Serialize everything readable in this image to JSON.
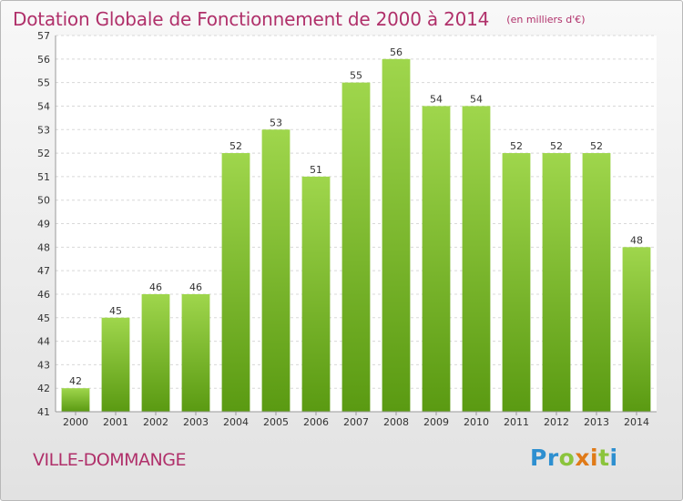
{
  "chart_data": {
    "type": "bar",
    "title": "Dotation Globale de Fonctionnement de 2000 à 2014",
    "unit": "(en milliers d'€)",
    "categories": [
      "2000",
      "2001",
      "2002",
      "2003",
      "2004",
      "2005",
      "2006",
      "2007",
      "2008",
      "2009",
      "2010",
      "2011",
      "2012",
      "2013",
      "2014"
    ],
    "values": [
      42,
      45,
      46,
      46,
      52,
      53,
      51,
      55,
      56,
      54,
      54,
      52,
      52,
      52,
      48
    ],
    "ylim": [
      41,
      57
    ],
    "yticks": [
      41,
      42,
      43,
      44,
      45,
      46,
      47,
      48,
      49,
      50,
      51,
      52,
      53,
      54,
      55,
      56,
      57
    ],
    "grid": true,
    "bar_color_top": "#9fd64c",
    "bar_color_bottom": "#5a9a12"
  },
  "place": "VILLE-DOMMANGE",
  "logo": {
    "text": "Proxiti",
    "letters": [
      {
        "ch": "P",
        "color": "#2d8fd0"
      },
      {
        "ch": "r",
        "color": "#2d8fd0"
      },
      {
        "ch": "o",
        "color": "#8bc43c"
      },
      {
        "ch": "x",
        "color": "#e07a18"
      },
      {
        "ch": "i",
        "color": "#e07a18"
      },
      {
        "ch": "t",
        "color": "#8bc43c"
      },
      {
        "ch": "i",
        "color": "#2d8fd0"
      }
    ]
  }
}
